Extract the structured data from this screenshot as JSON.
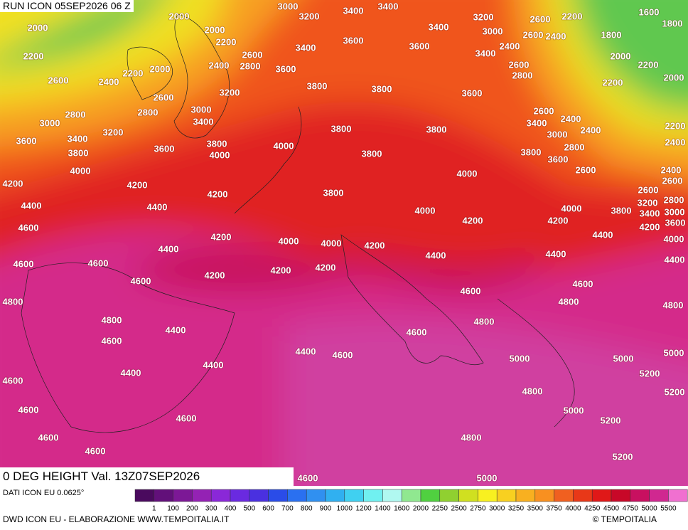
{
  "header": {
    "run": "RUN ICON 05SEP2026 06 Z"
  },
  "footer": {
    "title": "0 DEG HEIGHT Val. 13Z07SEP2026",
    "data_source": "DATI ICON EU 0.0625°",
    "credit": "DWD ICON EU - ELABORAZIONE WWW.TEMPOITALIA.IT",
    "copyright": "© TEMPOITALIA"
  },
  "legend": {
    "labels": [
      "1",
      "100",
      "200",
      "300",
      "400",
      "500",
      "600",
      "700",
      "800",
      "900",
      "1000",
      "1200",
      "1400",
      "1600",
      "2000",
      "2250",
      "2500",
      "2750",
      "3000",
      "3250",
      "3500",
      "3750",
      "4000",
      "4250",
      "4500",
      "4750",
      "5000",
      "5500"
    ],
    "colors": [
      "#4a0a5e",
      "#62107a",
      "#7c1896",
      "#9422b4",
      "#8a28d8",
      "#6a2ae0",
      "#4a30e0",
      "#2a4ce8",
      "#2a70f0",
      "#3090f0",
      "#30b0f0",
      "#40d0f0",
      "#70f0f0",
      "#b0f8f0",
      "#90e890",
      "#50d040",
      "#90d030",
      "#d0e020",
      "#f8f020",
      "#f8d020",
      "#f8b020",
      "#f89020",
      "#f06020",
      "#e83818",
      "#e01818",
      "#c80828",
      "#c81060",
      "#d02890",
      "#f070d0"
    ]
  },
  "contour_labels": [
    2000,
    3000,
    3400,
    3400,
    3200,
    3200,
    2600,
    2200,
    1600,
    1800,
    2000,
    2000,
    2200,
    3400,
    3000,
    2600,
    2400,
    1800,
    3600,
    3400,
    3600,
    2400,
    2600,
    2800,
    2200,
    3400,
    2000,
    2400,
    2200,
    2000,
    3600,
    2600,
    2000,
    2800,
    2600,
    2400,
    2200,
    3200,
    3800,
    3800,
    3600,
    2200,
    2600,
    3000,
    2800,
    2800,
    2600,
    2400,
    3400,
    3000,
    3200,
    3800,
    3800,
    3400,
    2400,
    2200,
    3000,
    3600,
    3400,
    3800,
    4000,
    2800,
    2400,
    3600,
    3800,
    4000,
    3800,
    3800,
    3600,
    4000,
    2600,
    4000,
    2400,
    4200,
    4200,
    3800,
    4200,
    2600,
    2600,
    4400,
    4400,
    4000,
    4000,
    3800,
    3400,
    3000,
    3200,
    2800,
    4600,
    4200,
    4200,
    3600,
    4200,
    4200,
    4000,
    4000,
    4200,
    4400,
    4000,
    4400,
    4400,
    4400,
    4600,
    4600,
    4200,
    4200,
    4400,
    4200,
    4600,
    4600,
    4800,
    4600,
    4800,
    4800,
    4800,
    4800,
    4400,
    4600,
    4600,
    4400,
    4600,
    5000,
    5000,
    5000,
    4400,
    4400,
    5200,
    4600,
    4800,
    5200,
    4600,
    5000,
    4600,
    5200,
    4600,
    4800,
    4600,
    5200,
    4600,
    5000
  ]
}
